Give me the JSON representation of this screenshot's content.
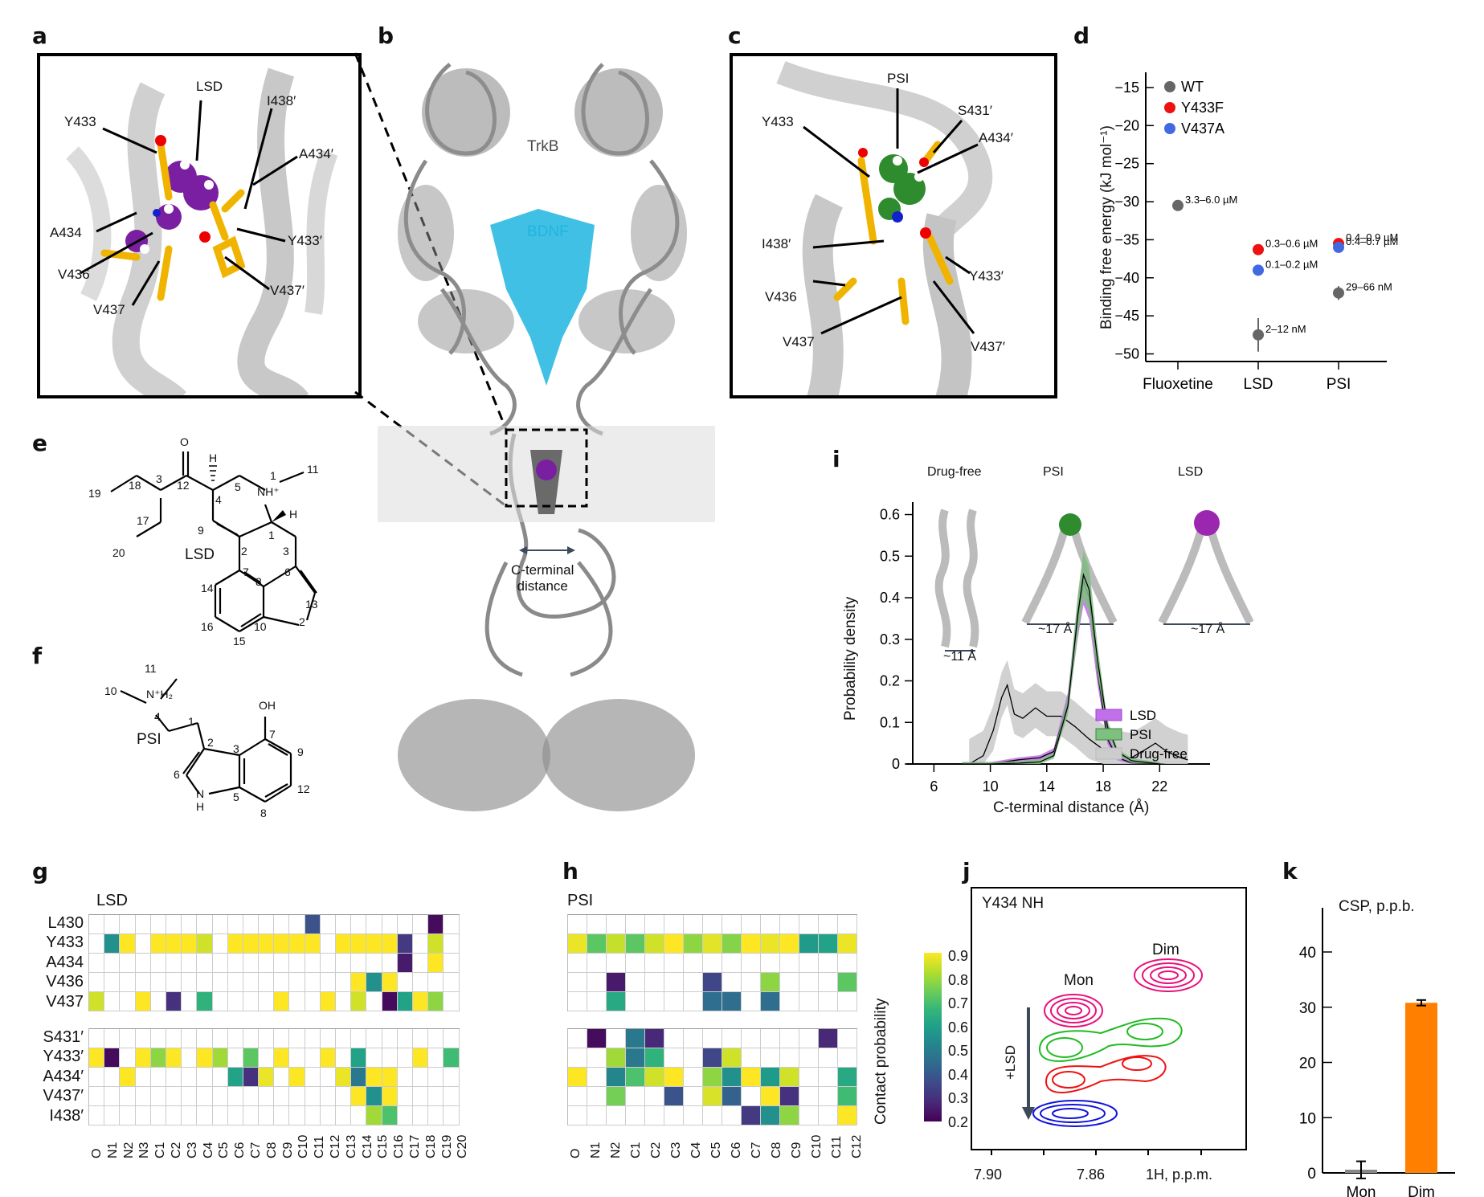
{
  "panels": {
    "a": {
      "label": "a",
      "residues": [
        "LSD",
        "Y433",
        "I438′",
        "A434′",
        "A434",
        "Y433′",
        "V436",
        "V437′",
        "V437"
      ],
      "ligand_color": "#7b1fa2"
    },
    "b": {
      "label": "b",
      "text_trkb": "TrkB",
      "text_bdnf": "BDNF",
      "c_terminal_label_1": "C-terminal",
      "c_terminal_label_2": "distance",
      "bdnf_color": "#1fb5e0"
    },
    "c": {
      "label": "c",
      "residues": [
        "PSI",
        "S431′",
        "Y433",
        "A434′",
        "I438′",
        "Y433′",
        "V436",
        "V437",
        "V437′"
      ],
      "ligand_color": "#2e8b2e"
    },
    "d": {
      "label": "d"
    },
    "e": {
      "label": "e",
      "molecule": "LSD",
      "atom_numbers": [
        "O",
        "H",
        "1",
        "11",
        "3",
        "18",
        "19",
        "12",
        "4",
        "5",
        "NH⁺",
        "H",
        "17",
        "9",
        "1",
        "3",
        "20",
        "2",
        "7",
        "6",
        "14",
        "8",
        "13",
        "16",
        "10",
        "2",
        "15"
      ]
    },
    "f": {
      "label": "f",
      "molecule": "PSI",
      "atom_numbers": [
        "11",
        "10",
        "1",
        "4",
        "1",
        "OH",
        "7",
        "2",
        "3",
        "9",
        "6",
        "2",
        "5",
        "12",
        "8"
      ]
    },
    "g": {
      "label": "g"
    },
    "h": {
      "label": "h"
    },
    "i": {
      "label": "i",
      "structures": [
        {
          "title": "Drug-free",
          "distance": "~11 Å"
        },
        {
          "title": "PSI",
          "distance": "~17 Å"
        },
        {
          "title": "LSD",
          "distance": "~17 Å"
        }
      ]
    },
    "j": {
      "label": "j"
    },
    "k": {
      "label": "k"
    }
  },
  "chart_data": [
    {
      "id": "d",
      "type": "scatter",
      "title": "",
      "xlabel": "",
      "ylabel": "Binding free energy (kJ mol⁻¹)",
      "categories": [
        "Fluoxetine",
        "LSD",
        "PSI"
      ],
      "ylim": [
        -51,
        -13
      ],
      "yticks": [
        -15,
        -20,
        -25,
        -30,
        -35,
        -40,
        -45,
        -50
      ],
      "legend": [
        {
          "name": "WT",
          "color": "#666666"
        },
        {
          "name": "Y433F",
          "color": "#ee1111"
        },
        {
          "name": "V437A",
          "color": "#4169e1"
        }
      ],
      "series": [
        {
          "name": "WT",
          "points": [
            {
              "x": "Fluoxetine",
              "y": -30.5,
              "label": "3.3–6.0 µM"
            },
            {
              "x": "LSD",
              "y": -47.5,
              "err": 2.2,
              "label": "2–12 nM"
            },
            {
              "x": "PSI",
              "y": -42.0,
              "err": 0.9,
              "label": "29–66 nM"
            }
          ]
        },
        {
          "name": "Y433F",
          "points": [
            {
              "x": "LSD",
              "y": -36.3,
              "label": "0.3–0.6 µM"
            },
            {
              "x": "PSI",
              "y": -35.5,
              "label": "0.4–0.9 µM"
            }
          ]
        },
        {
          "name": "V437A",
          "points": [
            {
              "x": "LSD",
              "y": -39.0,
              "label": "0.1–0.2 µM"
            },
            {
              "x": "PSI",
              "y": -36.0,
              "label": "0.4–0.7 µM"
            }
          ]
        }
      ]
    },
    {
      "id": "g",
      "type": "heatmap",
      "title": "LSD",
      "colorbar": {
        "label": "Contact probability",
        "min": 0.2,
        "max": 0.9,
        "ticks": [
          "0.9",
          "0.8",
          "0.7",
          "0.6",
          "0.5",
          "0.4",
          "0.3",
          "0.2"
        ]
      },
      "columns": [
        "O",
        "N1",
        "N2",
        "N3",
        "C1",
        "C2",
        "C3",
        "C4",
        "C5",
        "C6",
        "C7",
        "C8",
        "C9",
        "C10",
        "C11",
        "C12",
        "C13",
        "C14",
        "C15",
        "C16",
        "C17",
        "C18",
        "C19",
        "C20"
      ],
      "rows_top": [
        "L430",
        "Y433",
        "A434",
        "V436",
        "V437"
      ],
      "rows_bottom": [
        "S431′",
        "Y433′",
        "A434′",
        "V437′",
        "I438′"
      ],
      "values_top": [
        [
          0,
          0,
          0,
          0,
          0,
          0,
          0,
          0,
          0,
          0,
          0,
          0,
          0,
          0,
          0.38,
          0,
          0,
          0,
          0,
          0,
          0,
          0,
          0.22,
          0
        ],
        [
          0,
          0.55,
          0.9,
          0,
          0.9,
          0.9,
          0.9,
          0.85,
          0,
          0.9,
          0.9,
          0.9,
          0.9,
          0.9,
          0.9,
          0,
          0.9,
          0.9,
          0.9,
          0.9,
          0.32,
          0,
          0.85,
          0
        ],
        [
          0,
          0,
          0,
          0,
          0,
          0,
          0,
          0,
          0,
          0,
          0,
          0,
          0,
          0,
          0,
          0,
          0,
          0,
          0,
          0,
          0.25,
          0,
          0.9,
          0
        ],
        [
          0,
          0,
          0,
          0,
          0,
          0,
          0,
          0,
          0,
          0,
          0,
          0,
          0,
          0,
          0,
          0,
          0,
          0.9,
          0.55,
          0.9,
          0,
          0,
          0,
          0
        ],
        [
          0.85,
          0,
          0,
          0.9,
          0,
          0.3,
          0,
          0.65,
          0,
          0,
          0,
          0,
          0.9,
          0,
          0,
          0.9,
          0,
          0.85,
          0,
          0.22,
          0.6,
          0.9,
          0.78,
          0
        ]
      ],
      "values_bottom": [
        [
          0,
          0,
          0,
          0,
          0,
          0,
          0,
          0,
          0,
          0,
          0,
          0,
          0,
          0,
          0,
          0,
          0,
          0,
          0,
          0,
          0,
          0,
          0,
          0
        ],
        [
          0.9,
          0.22,
          0,
          0.9,
          0.78,
          0.9,
          0,
          0.9,
          0.8,
          0,
          0.72,
          0,
          0.9,
          0,
          0,
          0.9,
          0,
          0.6,
          0,
          0,
          0,
          0.9,
          0,
          0.68
        ],
        [
          0,
          0,
          0.9,
          0,
          0,
          0,
          0,
          0,
          0,
          0.6,
          0.3,
          0.88,
          0,
          0.9,
          0,
          0,
          0.88,
          0.48,
          0.9,
          0.9,
          0,
          0,
          0,
          0
        ],
        [
          0,
          0,
          0,
          0,
          0,
          0,
          0,
          0,
          0,
          0,
          0,
          0,
          0,
          0,
          0,
          0,
          0,
          0.9,
          0.55,
          0.9,
          0,
          0,
          0,
          0
        ],
        [
          0,
          0,
          0,
          0,
          0,
          0,
          0,
          0,
          0,
          0,
          0,
          0,
          0,
          0,
          0,
          0,
          0,
          0,
          0.8,
          0.7,
          0,
          0,
          0,
          0
        ]
      ]
    },
    {
      "id": "h",
      "type": "heatmap",
      "title": "PSI",
      "columns": [
        "O",
        "N1",
        "N2",
        "C1",
        "C2",
        "C3",
        "C4",
        "C5",
        "C6",
        "C7",
        "C8",
        "C9",
        "C10",
        "C11",
        "C12"
      ],
      "rows_top": [
        "L430",
        "Y433",
        "A434",
        "V436",
        "V437"
      ],
      "rows_bottom": [
        "S431′",
        "Y433′",
        "A434′",
        "V437′",
        "I438′"
      ],
      "values_top": [
        [
          0,
          0,
          0,
          0,
          0,
          0,
          0,
          0,
          0,
          0,
          0,
          0,
          0,
          0,
          0
        ],
        [
          0.88,
          0.72,
          0.84,
          0.72,
          0.85,
          0.9,
          0.78,
          0.87,
          0.77,
          0.9,
          0.88,
          0.9,
          0.58,
          0.6,
          0.88
        ],
        [
          0,
          0,
          0,
          0,
          0,
          0,
          0,
          0,
          0,
          0,
          0,
          0,
          0,
          0,
          0
        ],
        [
          0,
          0,
          0.25,
          0,
          0,
          0,
          0,
          0.35,
          0,
          0,
          0.78,
          0,
          0,
          0,
          0.72
        ],
        [
          0,
          0,
          0.62,
          0,
          0,
          0,
          0,
          0.45,
          0.45,
          0,
          0.45,
          0,
          0,
          0,
          0
        ]
      ],
      "values_bottom": [
        [
          0,
          0.22,
          0,
          0.48,
          0.28,
          0,
          0,
          0,
          0,
          0,
          0,
          0,
          0,
          0.28,
          0
        ],
        [
          0,
          0,
          0.8,
          0.48,
          0.65,
          0,
          0,
          0.35,
          0.85,
          0,
          0,
          0,
          0,
          0,
          0
        ],
        [
          0.9,
          0,
          0.52,
          0.7,
          0.85,
          0.9,
          0,
          0.78,
          0.55,
          0.9,
          0.58,
          0.85,
          0,
          0,
          0.62
        ],
        [
          0,
          0,
          0.75,
          0,
          0,
          0.38,
          0,
          0.86,
          0.42,
          0,
          0.9,
          0.3,
          0,
          0,
          0.68
        ],
        [
          0,
          0,
          0,
          0,
          0,
          0,
          0,
          0,
          0,
          0.32,
          0.55,
          0.78,
          0,
          0,
          0.9
        ]
      ]
    },
    {
      "id": "i",
      "type": "area",
      "xlabel": "C-terminal distance (Å)",
      "ylabel": "Probability density",
      "xlim": [
        4.5,
        25
      ],
      "ylim": [
        0,
        0.63
      ],
      "xticks": [
        6,
        10,
        14,
        18,
        22
      ],
      "yticks": [
        0,
        0.1,
        0.2,
        0.3,
        0.4,
        0.5,
        0.6
      ],
      "legend": [
        {
          "name": "LSD",
          "color": "#c070e8"
        },
        {
          "name": "PSI",
          "color": "#7fbf7f"
        },
        {
          "name": "Drug-free",
          "color": "#cccccc"
        }
      ],
      "series": [
        {
          "name": "LSD",
          "x": [
            8,
            10,
            12,
            13.5,
            14.5,
            15.5,
            16.2,
            16.6,
            17,
            17.6,
            18.3,
            19,
            20,
            22
          ],
          "y": [
            0,
            0,
            0.01,
            0.015,
            0.03,
            0.15,
            0.35,
            0.44,
            0.4,
            0.22,
            0.06,
            0.015,
            0.003,
            0
          ]
        },
        {
          "name": "PSI",
          "x": [
            8,
            10,
            12,
            13.5,
            14.5,
            15.5,
            16.2,
            16.6,
            17,
            17.6,
            18.3,
            19,
            20,
            22
          ],
          "y": [
            0,
            0,
            0.002,
            0.005,
            0.02,
            0.14,
            0.36,
            0.455,
            0.42,
            0.25,
            0.09,
            0.03,
            0.008,
            0
          ]
        },
        {
          "name": "Drug-free",
          "x": [
            8.5,
            9.5,
            10.2,
            10.8,
            11.2,
            11.7,
            12.3,
            13.2,
            14,
            15,
            16,
            17,
            18,
            19,
            20,
            21,
            21.7,
            22.5,
            23.5,
            24
          ],
          "y": [
            0,
            0.02,
            0.08,
            0.16,
            0.19,
            0.12,
            0.11,
            0.135,
            0.115,
            0.115,
            0.09,
            0.06,
            0.035,
            0.02,
            0.015,
            0.035,
            0.05,
            0.03,
            0.015,
            0.01
          ]
        }
      ]
    },
    {
      "id": "j",
      "type": "other",
      "title": "Y434 NH",
      "xlabel": "1H, p.p.m.",
      "xticks": [
        "7.90",
        "7.86"
      ],
      "annotations": [
        "Mon",
        "Dim",
        "+LSD"
      ],
      "contour_colors": [
        "#e8107a",
        "#22bb22",
        "#ee1111",
        "#1111dd"
      ]
    },
    {
      "id": "k",
      "type": "bar",
      "title": "CSP, p.p.b.",
      "categories": [
        "Mon",
        "Dim"
      ],
      "values": [
        0.3,
        30.8
      ],
      "errors": [
        1.8,
        0.5
      ],
      "colors": [
        "#888888",
        "#ff8000"
      ],
      "ylim": [
        0,
        48
      ],
      "yticks": [
        0,
        10,
        20,
        30,
        40
      ]
    }
  ]
}
